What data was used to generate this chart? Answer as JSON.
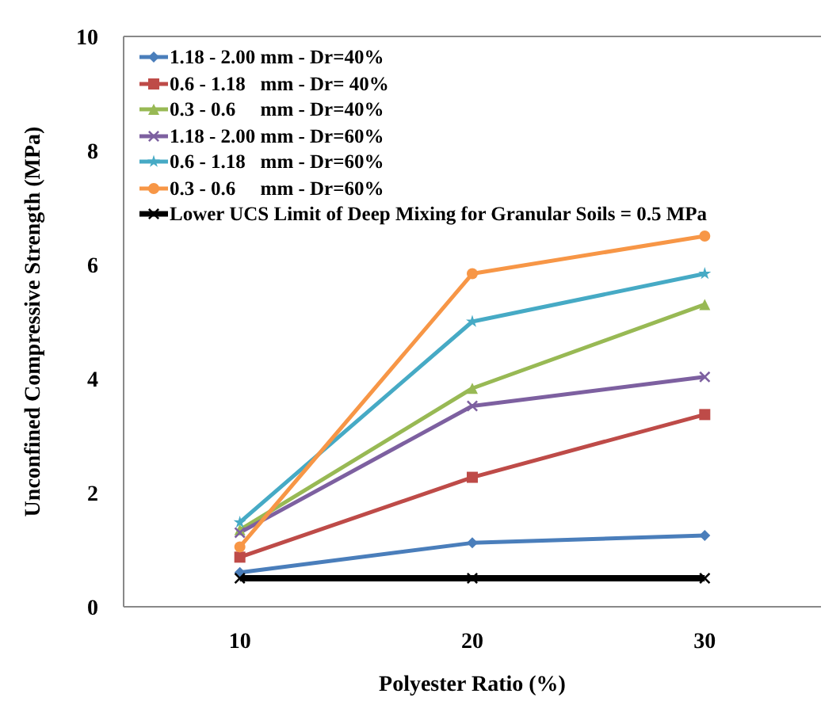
{
  "chart_data": {
    "type": "line",
    "xlabel": "Polyester Ratio (%)",
    "ylabel": "Unconfined Compressive Strength (MPa)",
    "categories": [
      "10",
      "20",
      "30"
    ],
    "series": [
      {
        "name": "1.18 - 2.00 mm - Dr=40%",
        "color": "#4a7ebb",
        "marker": "diamond",
        "values": [
          0.6,
          1.12,
          1.25
        ]
      },
      {
        "name": "0.6 - 1.18   mm - Dr= 40%",
        "color": "#be4b48",
        "marker": "square",
        "values": [
          0.87,
          2.27,
          3.37
        ]
      },
      {
        "name": "0.3 - 0.6     mm - Dr=40%",
        "color": "#98b954",
        "marker": "triangle",
        "values": [
          1.35,
          3.83,
          5.3
        ]
      },
      {
        "name": "1.18 - 2.00 mm - Dr=60%",
        "color": "#7d60a0",
        "marker": "cross",
        "values": [
          1.3,
          3.52,
          4.03
        ]
      },
      {
        "name": "0.6 - 1.18   mm - Dr=60%",
        "color": "#46aac5",
        "marker": "star",
        "values": [
          1.48,
          5.0,
          5.84
        ]
      },
      {
        "name": "0.3 - 0.6     mm - Dr=60%",
        "color": "#f79646",
        "marker": "circle",
        "values": [
          1.05,
          5.84,
          6.5
        ]
      },
      {
        "name": "Lower UCS Limit of Deep Mixing for Granular Soils = 0.5 MPa",
        "color": "#000000",
        "marker": "cross",
        "values": [
          0.5,
          0.5,
          0.5
        ]
      }
    ],
    "ylim": [
      0,
      10
    ],
    "yticks": [
      0,
      2,
      4,
      6,
      8,
      10
    ],
    "legend": "top left"
  }
}
